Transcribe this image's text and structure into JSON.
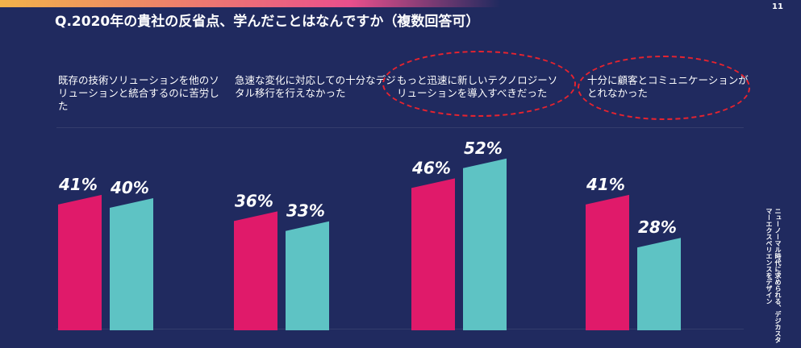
{
  "page_number": "11",
  "side_caption": "ニューノーマル時代に求められる、デジカスタマーエクスペリエンスをデザイン",
  "colors": {
    "background": "#202a5f",
    "series_1": "#e01a6a",
    "series_2": "#5ec3c4",
    "highlight": "#e6232f"
  },
  "chart_data": {
    "type": "bar",
    "title": "Q.2020年の貴社の反省点、学んだことはなんですか（複数回答可）",
    "categories": [
      "既存の技術ソリューションを他のソリューションと統合するのに苦労した",
      "急速な変化に対応しての十分なデジタル移行を行えなかった",
      "もっと迅速に新しいテクノロジーソリューションを導入すべきだった",
      "十分に顧客とコミュニケーションがとれなかった"
    ],
    "series": [
      {
        "values": [
          41,
          36,
          46,
          41
        ],
        "value_labels": [
          "41%",
          "36%",
          "46%",
          "41%"
        ],
        "color": "#e01a6a"
      },
      {
        "values": [
          40,
          33,
          52,
          28
        ],
        "value_labels": [
          "40%",
          "33%",
          "52%",
          "28%"
        ],
        "color": "#5ec3c4"
      }
    ],
    "highlighted_categories": [
      2,
      3
    ],
    "legend": "none",
    "grid": true
  }
}
